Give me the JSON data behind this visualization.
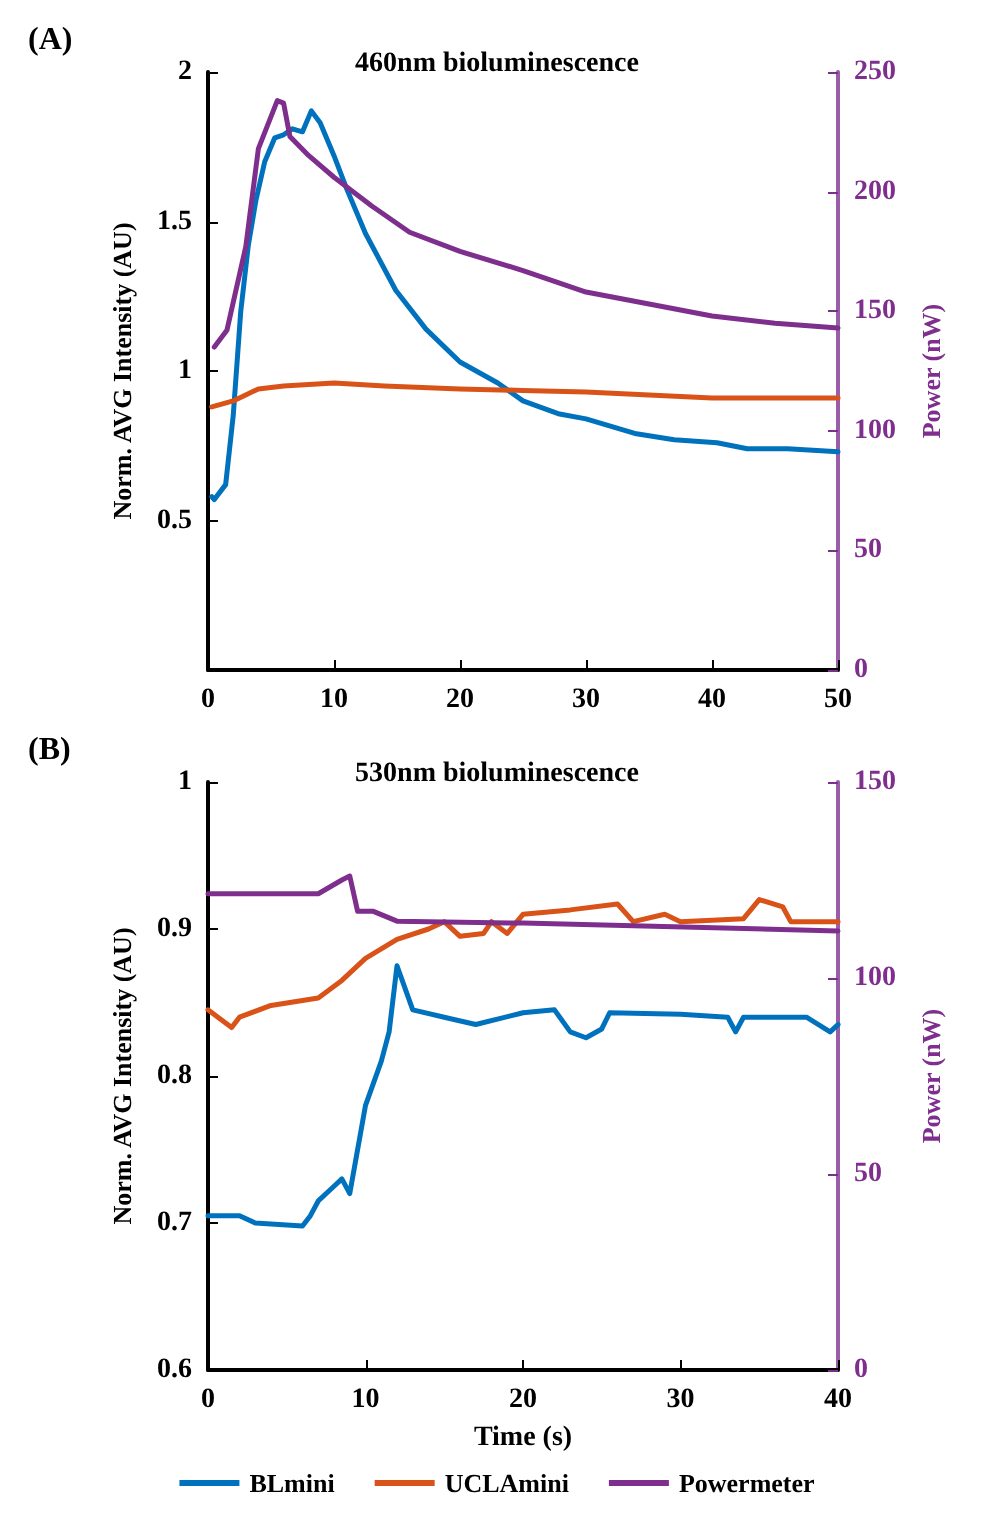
{
  "chart_data": [
    {
      "type": "line",
      "title": "460nm bioluminescence",
      "ylabel": "Norm. AVG Intensity (AU)",
      "y2label": "Power (nW)",
      "annotations": [
        "(A)"
      ],
      "xlim": [
        0,
        50
      ],
      "xticks": [
        0,
        10,
        20,
        30,
        40,
        50
      ],
      "ylim": [
        0,
        2
      ],
      "yticks": [
        0.5,
        1,
        1.5,
        2
      ],
      "y2lim": [
        0,
        250
      ],
      "y2ticks": [
        0,
        50,
        100,
        150,
        200,
        250
      ],
      "grid": false,
      "legend": false,
      "marker": "none",
      "line_style": "solid",
      "series": [
        {
          "color": "#0072bd",
          "x": [
            0.3,
            0.5,
            1.4,
            2,
            2.6,
            3.2,
            3.8,
            4.5,
            5.3,
            6,
            6.7,
            7.5,
            8.2,
            8.9,
            10,
            11,
            12.5,
            14.9,
            17.3,
            20,
            23,
            25,
            27.9,
            30,
            34,
            37,
            40.4,
            42.8,
            46,
            50
          ],
          "values": [
            0.58,
            0.57,
            0.62,
            0.85,
            1.2,
            1.42,
            1.57,
            1.7,
            1.78,
            1.79,
            1.81,
            1.8,
            1.87,
            1.83,
            1.72,
            1.61,
            1.46,
            1.27,
            1.14,
            1.03,
            0.96,
            0.9,
            0.856,
            0.84,
            0.79,
            0.77,
            0.76,
            0.74,
            0.74,
            0.73
          ]
        },
        {
          "color": "#d95319",
          "x": [
            0.3,
            2,
            4,
            6,
            10,
            14,
            20,
            25,
            30,
            35,
            40,
            45,
            50
          ],
          "values": [
            0.88,
            0.9,
            0.94,
            0.95,
            0.96,
            0.95,
            0.94,
            0.935,
            0.93,
            0.92,
            0.91,
            0.91,
            0.91
          ]
        },
        {
          "color": "#7e2f8e",
          "axis": "y2",
          "x": [
            0.5,
            1.5,
            3,
            4,
            5.5,
            6,
            6.5,
            8,
            10,
            13,
            16,
            20,
            25,
            30,
            35,
            40,
            45,
            50
          ],
          "values": [
            135,
            142,
            177,
            218,
            238,
            237,
            223,
            215,
            206,
            194,
            183,
            175,
            167,
            158,
            153,
            148,
            145,
            143
          ]
        }
      ]
    },
    {
      "type": "line",
      "title": "530nm bioluminescence",
      "xlabel": "Time (s)",
      "ylabel": "Norm. AVG Intensity (AU)",
      "y2label": "Power (nW)",
      "annotations": [
        "(B)"
      ],
      "xlim": [
        0,
        40
      ],
      "xticks": [
        0,
        10,
        20,
        30,
        40
      ],
      "ylim": [
        0.6,
        1
      ],
      "yticks": [
        0.6,
        0.7,
        0.8,
        0.9,
        1
      ],
      "y2lim": [
        0,
        150
      ],
      "y2ticks": [
        0,
        50,
        100,
        150
      ],
      "grid": false,
      "legend": "bottom",
      "marker": "none",
      "line_style": "solid",
      "series": [
        {
          "name": "BLmini",
          "color": "#0072bd",
          "x": [
            0,
            2,
            3,
            6,
            6.5,
            7,
            8,
            8.5,
            9,
            9.5,
            10,
            11,
            11.5,
            12,
            12.5,
            13,
            15,
            17,
            20,
            22,
            23,
            24,
            25,
            25.5,
            30,
            33,
            33.5,
            34,
            38,
            39.5,
            40
          ],
          "values": [
            0.705,
            0.705,
            0.7,
            0.698,
            0.705,
            0.715,
            0.725,
            0.73,
            0.72,
            0.75,
            0.78,
            0.81,
            0.83,
            0.875,
            0.86,
            0.845,
            0.84,
            0.835,
            0.843,
            0.845,
            0.83,
            0.826,
            0.832,
            0.843,
            0.842,
            0.84,
            0.83,
            0.84,
            0.84,
            0.83,
            0.835
          ]
        },
        {
          "name": "UCLAmini",
          "color": "#d95319",
          "x": [
            0,
            1.5,
            2,
            4,
            7,
            8.5,
            10,
            12,
            14,
            15,
            16,
            17.5,
            18,
            19,
            20,
            23,
            26,
            27,
            29,
            30,
            34,
            35,
            36.5,
            37,
            40
          ],
          "values": [
            0.845,
            0.833,
            0.84,
            0.848,
            0.853,
            0.865,
            0.88,
            0.893,
            0.9,
            0.905,
            0.895,
            0.897,
            0.905,
            0.897,
            0.91,
            0.913,
            0.917,
            0.905,
            0.91,
            0.905,
            0.907,
            0.92,
            0.915,
            0.905,
            0.905
          ]
        },
        {
          "name": "Powermeter",
          "color": "#7e2f8e",
          "axis": "y2",
          "x": [
            0,
            7,
            8.5,
            9,
            9.5,
            10.5,
            12,
            20,
            40
          ],
          "values": [
            121.5,
            121.5,
            125,
            126,
            117,
            117,
            114.5,
            114,
            112
          ]
        }
      ]
    }
  ]
}
